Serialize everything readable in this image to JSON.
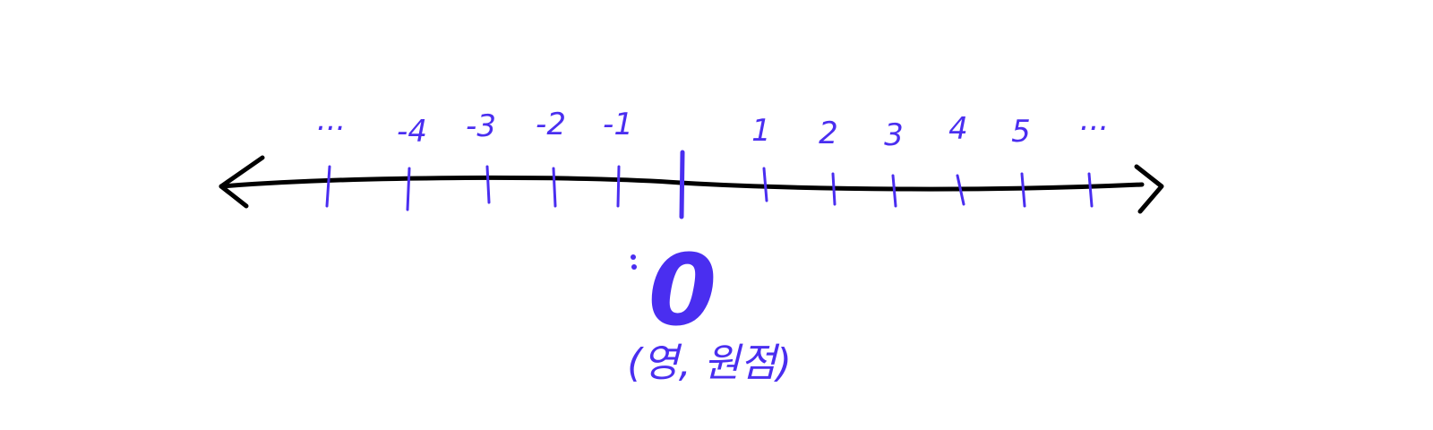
{
  "colors": {
    "axis": "#000000",
    "ink": "#4a2ef0"
  },
  "number_line": {
    "left_ellipsis": "...",
    "right_ellipsis": "...",
    "negative_labels": [
      "-4",
      "-3",
      "-2",
      "-1"
    ],
    "positive_labels": [
      "1",
      "2",
      "3",
      "4",
      "5"
    ],
    "origin_label": "0",
    "origin_note": "(영, 원점)"
  }
}
